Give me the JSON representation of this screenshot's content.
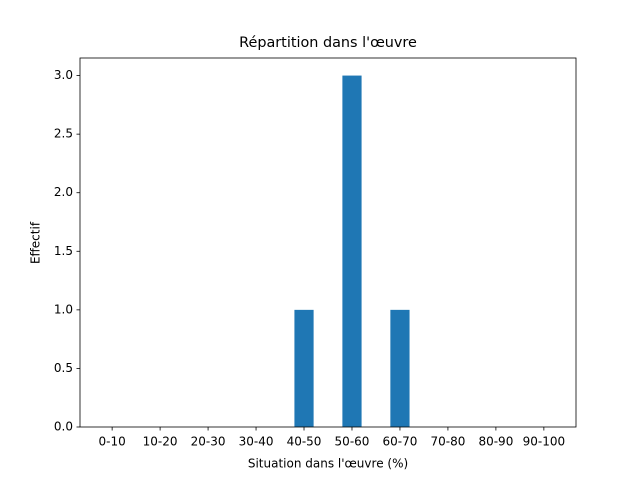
{
  "chart_data": {
    "type": "bar",
    "title": "Répartition dans l'œuvre",
    "xlabel": "Situation dans l'œuvre (%)",
    "ylabel": "Effectif",
    "categories": [
      "0-10",
      "10-20",
      "20-30",
      "30-40",
      "40-50",
      "50-60",
      "60-70",
      "70-80",
      "80-90",
      "90-100"
    ],
    "values": [
      0,
      0,
      0,
      0,
      1,
      3,
      1,
      0,
      0,
      0
    ],
    "color": "#1f77b4",
    "ylim": [
      0,
      3.15
    ],
    "yticks": [
      {
        "value": 0,
        "label": "0.0"
      },
      {
        "value": 0.5,
        "label": "0.5"
      },
      {
        "value": 1,
        "label": "1.0"
      },
      {
        "value": 1.5,
        "label": "1.5"
      },
      {
        "value": 2,
        "label": "2.0"
      },
      {
        "value": 2.5,
        "label": "2.5"
      },
      {
        "value": 3,
        "label": "3.0"
      }
    ],
    "grid": false
  }
}
